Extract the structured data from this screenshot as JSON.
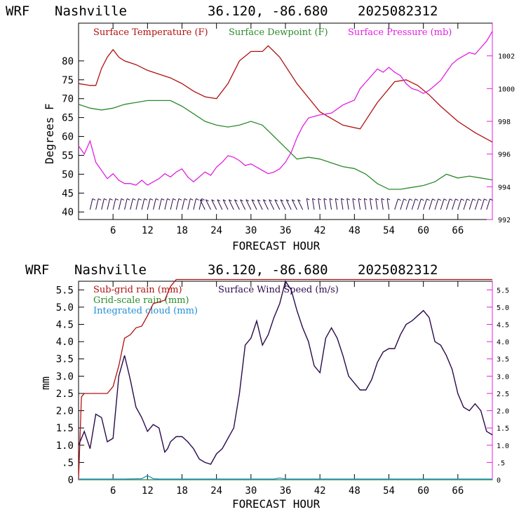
{
  "colors": {
    "temperature": "#b01010",
    "dewpoint": "#2a8a2a",
    "pressure": "#e020e0",
    "subgrid_rain": "#b01010",
    "gridscale_rain": "#2a8a2a",
    "cloud": "#1e8fd8",
    "wind_speed": "#2a0a4a",
    "wind_barb": "#2a0a4a",
    "right_axis_top": "#e020e0",
    "right_axis_bottom": "#e020e0"
  },
  "top_chart": {
    "title": {
      "model": "WRF",
      "station": "Nashville",
      "coords": "36.120, -86.680",
      "run": "2025082312"
    },
    "ylabel": "Degrees F",
    "xlabel": "FORECAST HOUR",
    "x_ticks": [
      "6",
      "12",
      "18",
      "24",
      "30",
      "36",
      "42",
      "48",
      "54",
      "60",
      "66"
    ],
    "y_ticks": [
      "40",
      "45",
      "50",
      "55",
      "60",
      "65",
      "70",
      "75",
      "80"
    ],
    "y2_ticks": [
      "992",
      "994",
      "996",
      "998",
      "1000",
      "1002"
    ],
    "legend": [
      "Surface Temperature (F)",
      "Surface Dewpoint (F)",
      "Surface Pressure (mb)"
    ]
  },
  "bottom_chart": {
    "title": {
      "model": "WRF",
      "station": "Nashville",
      "coords": "36.120, -86.680",
      "run": "2025082312"
    },
    "ylabel": "mm",
    "xlabel": "FORECAST HOUR",
    "x_ticks": [
      "6",
      "12",
      "18",
      "24",
      "30",
      "36",
      "42",
      "48",
      "54",
      "60",
      "66"
    ],
    "y_ticks": [
      "0",
      ".5",
      "1.0",
      "1.5",
      "2.0",
      "2.5",
      "3.0",
      "3.5",
      "4.0",
      "4.5",
      "5.0",
      "5.5"
    ],
    "y2_ticks": [
      "0",
      ".5",
      "1.0",
      "1.5",
      "2.0",
      "2.5",
      "3.0",
      "3.5",
      "4.0",
      "4.5",
      "5.0",
      "5.5"
    ],
    "legend": [
      "Sub-grid rain (mm)",
      "Grid-scale rain (mm)",
      "Integrated cloud (mm)",
      "Surface Wind Speed (m/s)"
    ]
  },
  "chart_data": [
    {
      "type": "line",
      "title": "WRF Nashville 36.120, -86.680 2025082312",
      "xlabel": "FORECAST HOUR",
      "ylabel": "Degrees F",
      "xlim": [
        0,
        72
      ],
      "ylim": [
        38,
        90
      ],
      "y2lim": [
        992,
        1004
      ],
      "series": [
        {
          "name": "Surface Temperature (F)",
          "axis": "left",
          "x": [
            0,
            2,
            3,
            4,
            5,
            6,
            7,
            8,
            10,
            12,
            14,
            16,
            18,
            20,
            22,
            24,
            26,
            28,
            30,
            32,
            33,
            35,
            38,
            42,
            46,
            49,
            52,
            55,
            57,
            59,
            61,
            63,
            66,
            69,
            72
          ],
          "values": [
            74,
            73.5,
            73.5,
            78,
            81,
            83,
            81,
            80,
            79,
            77.5,
            76.5,
            75.5,
            74,
            72,
            70.5,
            70,
            74,
            80,
            82.5,
            82.5,
            84,
            81,
            74,
            66.5,
            63,
            62,
            69,
            74.5,
            75,
            73.5,
            71,
            68,
            64,
            61,
            58.5
          ]
        },
        {
          "name": "Surface Dewpoint (F)",
          "axis": "left",
          "x": [
            0,
            2,
            4,
            6,
            8,
            10,
            12,
            14,
            16,
            18,
            20,
            22,
            24,
            26,
            28,
            30,
            32,
            34,
            36,
            38,
            40,
            42,
            44,
            46,
            48,
            50,
            52,
            54,
            56,
            58,
            60,
            62,
            64,
            66,
            68,
            70,
            72
          ],
          "values": [
            68.5,
            67.5,
            67,
            67.5,
            68.5,
            69,
            69.5,
            69.5,
            69.5,
            68,
            66,
            64,
            63,
            62.5,
            63,
            64,
            63,
            60,
            57,
            54,
            54.5,
            54,
            53,
            52,
            51.5,
            50,
            47.5,
            46,
            46,
            46.5,
            47,
            48,
            50,
            49,
            49.5,
            49,
            48.5
          ]
        },
        {
          "name": "Surface Pressure (mb)",
          "axis": "right",
          "x": [
            0,
            1,
            2,
            3,
            4,
            5,
            6,
            7,
            8,
            9,
            10,
            11,
            12,
            13,
            14,
            15,
            16,
            17,
            18,
            19,
            20,
            21,
            22,
            23,
            24,
            25,
            26,
            27,
            28,
            29,
            30,
            31,
            32,
            33,
            34,
            35,
            36,
            37,
            38,
            39,
            40,
            42,
            44,
            46,
            48,
            49,
            50,
            51,
            52,
            53,
            54,
            55,
            56,
            57,
            58,
            59,
            60,
            61,
            62,
            63,
            64,
            65,
            66,
            67,
            68,
            69,
            70,
            71,
            72
          ],
          "values": [
            996.5,
            996,
            996.8,
            995.5,
            995,
            994.5,
            994.8,
            994.4,
            994.2,
            994.2,
            994.1,
            994.4,
            994.1,
            994.3,
            994.5,
            994.8,
            994.6,
            994.9,
            995.1,
            994.6,
            994.3,
            994.6,
            994.9,
            994.7,
            995.2,
            995.5,
            995.9,
            995.8,
            995.6,
            995.3,
            995.4,
            995.2,
            995,
            994.8,
            994.9,
            995.1,
            995.5,
            996.1,
            997,
            997.7,
            998.2,
            998.4,
            998.5,
            999,
            999.3,
            1000,
            1000.4,
            1000.8,
            1001.2,
            1001,
            1001.3,
            1001,
            1000.8,
            1000.3,
            1000,
            999.9,
            999.7,
            999.9,
            1000.2,
            1000.5,
            1001,
            1001.5,
            1001.8,
            1002,
            1002.2,
            1002.1,
            1002.5,
            1002.9,
            1003.5
          ]
        }
      ],
      "wind_barbs": "row of wind barbs along the bottom, every hour"
    },
    {
      "type": "line",
      "title": "WRF Nashville 36.120, -86.680 2025082312",
      "xlabel": "FORECAST HOUR",
      "ylabel": "mm",
      "xlim": [
        0,
        72
      ],
      "ylim": [
        0,
        5.75
      ],
      "y2lim": [
        0,
        5.75
      ],
      "series": [
        {
          "name": "Sub-grid rain (mm)",
          "axis": "left",
          "step": true,
          "x": [
            0,
            0.5,
            1,
            2,
            5,
            6,
            7,
            8,
            9,
            10,
            11,
            12,
            13,
            14,
            15,
            16,
            17,
            72
          ],
          "values": [
            0,
            2.4,
            2.5,
            2.5,
            2.5,
            2.7,
            3.3,
            4.1,
            4.2,
            4.4,
            4.45,
            4.75,
            5.1,
            5.15,
            5.2,
            5.6,
            5.8,
            5.8
          ]
        },
        {
          "name": "Grid-scale rain (mm)",
          "axis": "left",
          "x": [
            0,
            72
          ],
          "values": [
            0,
            0
          ]
        },
        {
          "name": "Integrated cloud (mm)",
          "axis": "left",
          "x": [
            0,
            8,
            11,
            12,
            13,
            14,
            16,
            34,
            35,
            36,
            72
          ],
          "values": [
            0.02,
            0.02,
            0.03,
            0.12,
            0.03,
            0.02,
            0.02,
            0.02,
            0.05,
            0.02,
            0.02
          ]
        },
        {
          "name": "Surface Wind Speed (m/s)",
          "axis": "right",
          "x": [
            0,
            1,
            2,
            3,
            4,
            5,
            6,
            7,
            8,
            9,
            10,
            11,
            12,
            13,
            14,
            15,
            15.5,
            16,
            17,
            18,
            19,
            20,
            21,
            22,
            23,
            24,
            25,
            26,
            27,
            28,
            29,
            30,
            31,
            32,
            33,
            34,
            35,
            36,
            37,
            38,
            39,
            40,
            41,
            42,
            43,
            44,
            45,
            46,
            47,
            48,
            49,
            50,
            51,
            52,
            53,
            54,
            55,
            56,
            57,
            58,
            59,
            60,
            61,
            62,
            63,
            64,
            65,
            66,
            67,
            68,
            69,
            70,
            71,
            72
          ],
          "values": [
            1.0,
            1.4,
            0.9,
            1.9,
            1.8,
            1.1,
            1.2,
            3.0,
            3.6,
            2.9,
            2.1,
            1.8,
            1.4,
            1.6,
            1.5,
            0.8,
            0.9,
            1.1,
            1.25,
            1.25,
            1.1,
            0.9,
            0.6,
            0.5,
            0.45,
            0.75,
            0.9,
            1.2,
            1.5,
            2.5,
            3.9,
            4.1,
            4.6,
            3.9,
            4.2,
            4.7,
            5.1,
            5.75,
            5.5,
            4.9,
            4.4,
            4.0,
            3.3,
            3.1,
            4.1,
            4.4,
            4.1,
            3.6,
            3.0,
            2.8,
            2.6,
            2.6,
            2.9,
            3.4,
            3.7,
            3.8,
            3.8,
            4.2,
            4.5,
            4.6,
            4.75,
            4.9,
            4.7,
            4.0,
            3.9,
            3.6,
            3.2,
            2.5,
            2.1,
            2.0,
            2.2,
            2.0,
            1.4,
            1.3
          ]
        }
      ]
    }
  ]
}
